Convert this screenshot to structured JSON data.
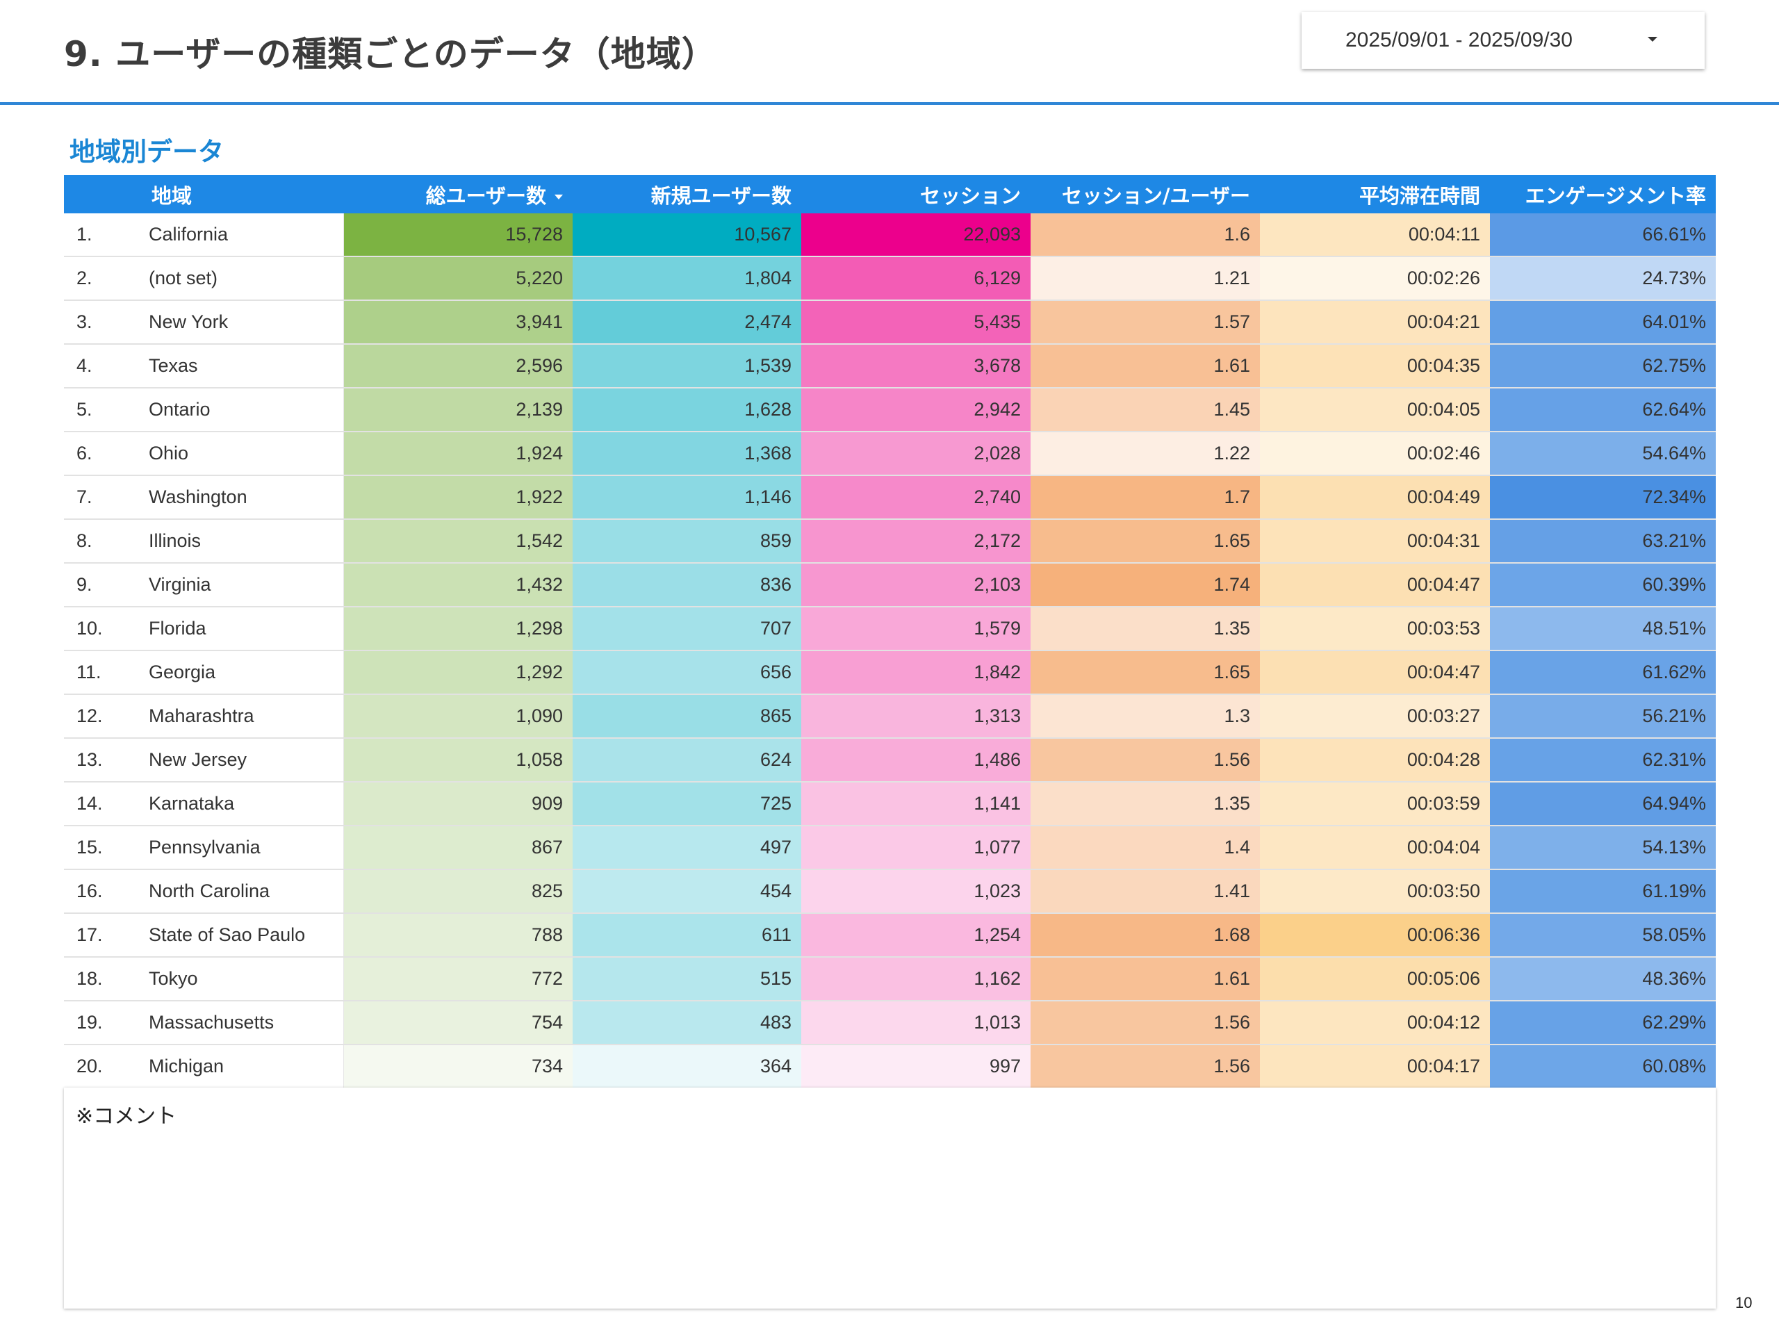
{
  "header": {
    "title": "9. ユーザーの種類ごとのデータ（地域）",
    "date_range": "2025/09/01 - 2025/09/30",
    "caret_icon": "caret-down-icon"
  },
  "section": {
    "title": "地域別データ"
  },
  "table": {
    "columns": [
      "",
      "地域",
      "総ユーザー数",
      "新規ユーザー数",
      "セッション",
      "セッション/ユーザー",
      "平均滞在時間",
      "エンゲージメント率"
    ],
    "sorted_column": "総ユーザー数",
    "sort_direction": "descending",
    "column_colors": {
      "users": "#7cb342",
      "new_users": "#00acc1",
      "sessions": "#ec008c",
      "sessions_per_user": "#f6b17b",
      "avg_duration": "#fbd08a",
      "engagement": "#4a90e2"
    },
    "rows": [
      {
        "rank": "1.",
        "region": "California",
        "users": "15,728",
        "new_users": "10,567",
        "sessions": "22,093",
        "spu": "1.6",
        "duration": "00:04:11",
        "engagement": "66.61%"
      },
      {
        "rank": "2.",
        "region": "(not set)",
        "users": "5,220",
        "new_users": "1,804",
        "sessions": "6,129",
        "spu": "1.21",
        "duration": "00:02:26",
        "engagement": "24.73%"
      },
      {
        "rank": "3.",
        "region": "New York",
        "users": "3,941",
        "new_users": "2,474",
        "sessions": "5,435",
        "spu": "1.57",
        "duration": "00:04:21",
        "engagement": "64.01%"
      },
      {
        "rank": "4.",
        "region": "Texas",
        "users": "2,596",
        "new_users": "1,539",
        "sessions": "3,678",
        "spu": "1.61",
        "duration": "00:04:35",
        "engagement": "62.75%"
      },
      {
        "rank": "5.",
        "region": "Ontario",
        "users": "2,139",
        "new_users": "1,628",
        "sessions": "2,942",
        "spu": "1.45",
        "duration": "00:04:05",
        "engagement": "62.64%"
      },
      {
        "rank": "6.",
        "region": "Ohio",
        "users": "1,924",
        "new_users": "1,368",
        "sessions": "2,028",
        "spu": "1.22",
        "duration": "00:02:46",
        "engagement": "54.64%"
      },
      {
        "rank": "7.",
        "region": "Washington",
        "users": "1,922",
        "new_users": "1,146",
        "sessions": "2,740",
        "spu": "1.7",
        "duration": "00:04:49",
        "engagement": "72.34%"
      },
      {
        "rank": "8.",
        "region": "Illinois",
        "users": "1,542",
        "new_users": "859",
        "sessions": "2,172",
        "spu": "1.65",
        "duration": "00:04:31",
        "engagement": "63.21%"
      },
      {
        "rank": "9.",
        "region": "Virginia",
        "users": "1,432",
        "new_users": "836",
        "sessions": "2,103",
        "spu": "1.74",
        "duration": "00:04:47",
        "engagement": "60.39%"
      },
      {
        "rank": "10.",
        "region": "Florida",
        "users": "1,298",
        "new_users": "707",
        "sessions": "1,579",
        "spu": "1.35",
        "duration": "00:03:53",
        "engagement": "48.51%"
      },
      {
        "rank": "11.",
        "region": "Georgia",
        "users": "1,292",
        "new_users": "656",
        "sessions": "1,842",
        "spu": "1.65",
        "duration": "00:04:47",
        "engagement": "61.62%"
      },
      {
        "rank": "12.",
        "region": "Maharashtra",
        "users": "1,090",
        "new_users": "865",
        "sessions": "1,313",
        "spu": "1.3",
        "duration": "00:03:27",
        "engagement": "56.21%"
      },
      {
        "rank": "13.",
        "region": "New Jersey",
        "users": "1,058",
        "new_users": "624",
        "sessions": "1,486",
        "spu": "1.56",
        "duration": "00:04:28",
        "engagement": "62.31%"
      },
      {
        "rank": "14.",
        "region": "Karnataka",
        "users": "909",
        "new_users": "725",
        "sessions": "1,141",
        "spu": "1.35",
        "duration": "00:03:59",
        "engagement": "64.94%"
      },
      {
        "rank": "15.",
        "region": "Pennsylvania",
        "users": "867",
        "new_users": "497",
        "sessions": "1,077",
        "spu": "1.4",
        "duration": "00:04:04",
        "engagement": "54.13%"
      },
      {
        "rank": "16.",
        "region": "North Carolina",
        "users": "825",
        "new_users": "454",
        "sessions": "1,023",
        "spu": "1.41",
        "duration": "00:03:50",
        "engagement": "61.19%"
      },
      {
        "rank": "17.",
        "region": "State of Sao Paulo",
        "users": "788",
        "new_users": "611",
        "sessions": "1,254",
        "spu": "1.68",
        "duration": "00:06:36",
        "engagement": "58.05%"
      },
      {
        "rank": "18.",
        "region": "Tokyo",
        "users": "772",
        "new_users": "515",
        "sessions": "1,162",
        "spu": "1.61",
        "duration": "00:05:06",
        "engagement": "48.36%"
      },
      {
        "rank": "19.",
        "region": "Massachusetts",
        "users": "754",
        "new_users": "483",
        "sessions": "1,013",
        "spu": "1.56",
        "duration": "00:04:12",
        "engagement": "62.29%"
      },
      {
        "rank": "20.",
        "region": "Michigan",
        "users": "734",
        "new_users": "364",
        "sessions": "997",
        "spu": "1.56",
        "duration": "00:04:17",
        "engagement": "60.08%"
      }
    ]
  },
  "comment": {
    "label": "※コメント"
  },
  "page_number": "10"
}
